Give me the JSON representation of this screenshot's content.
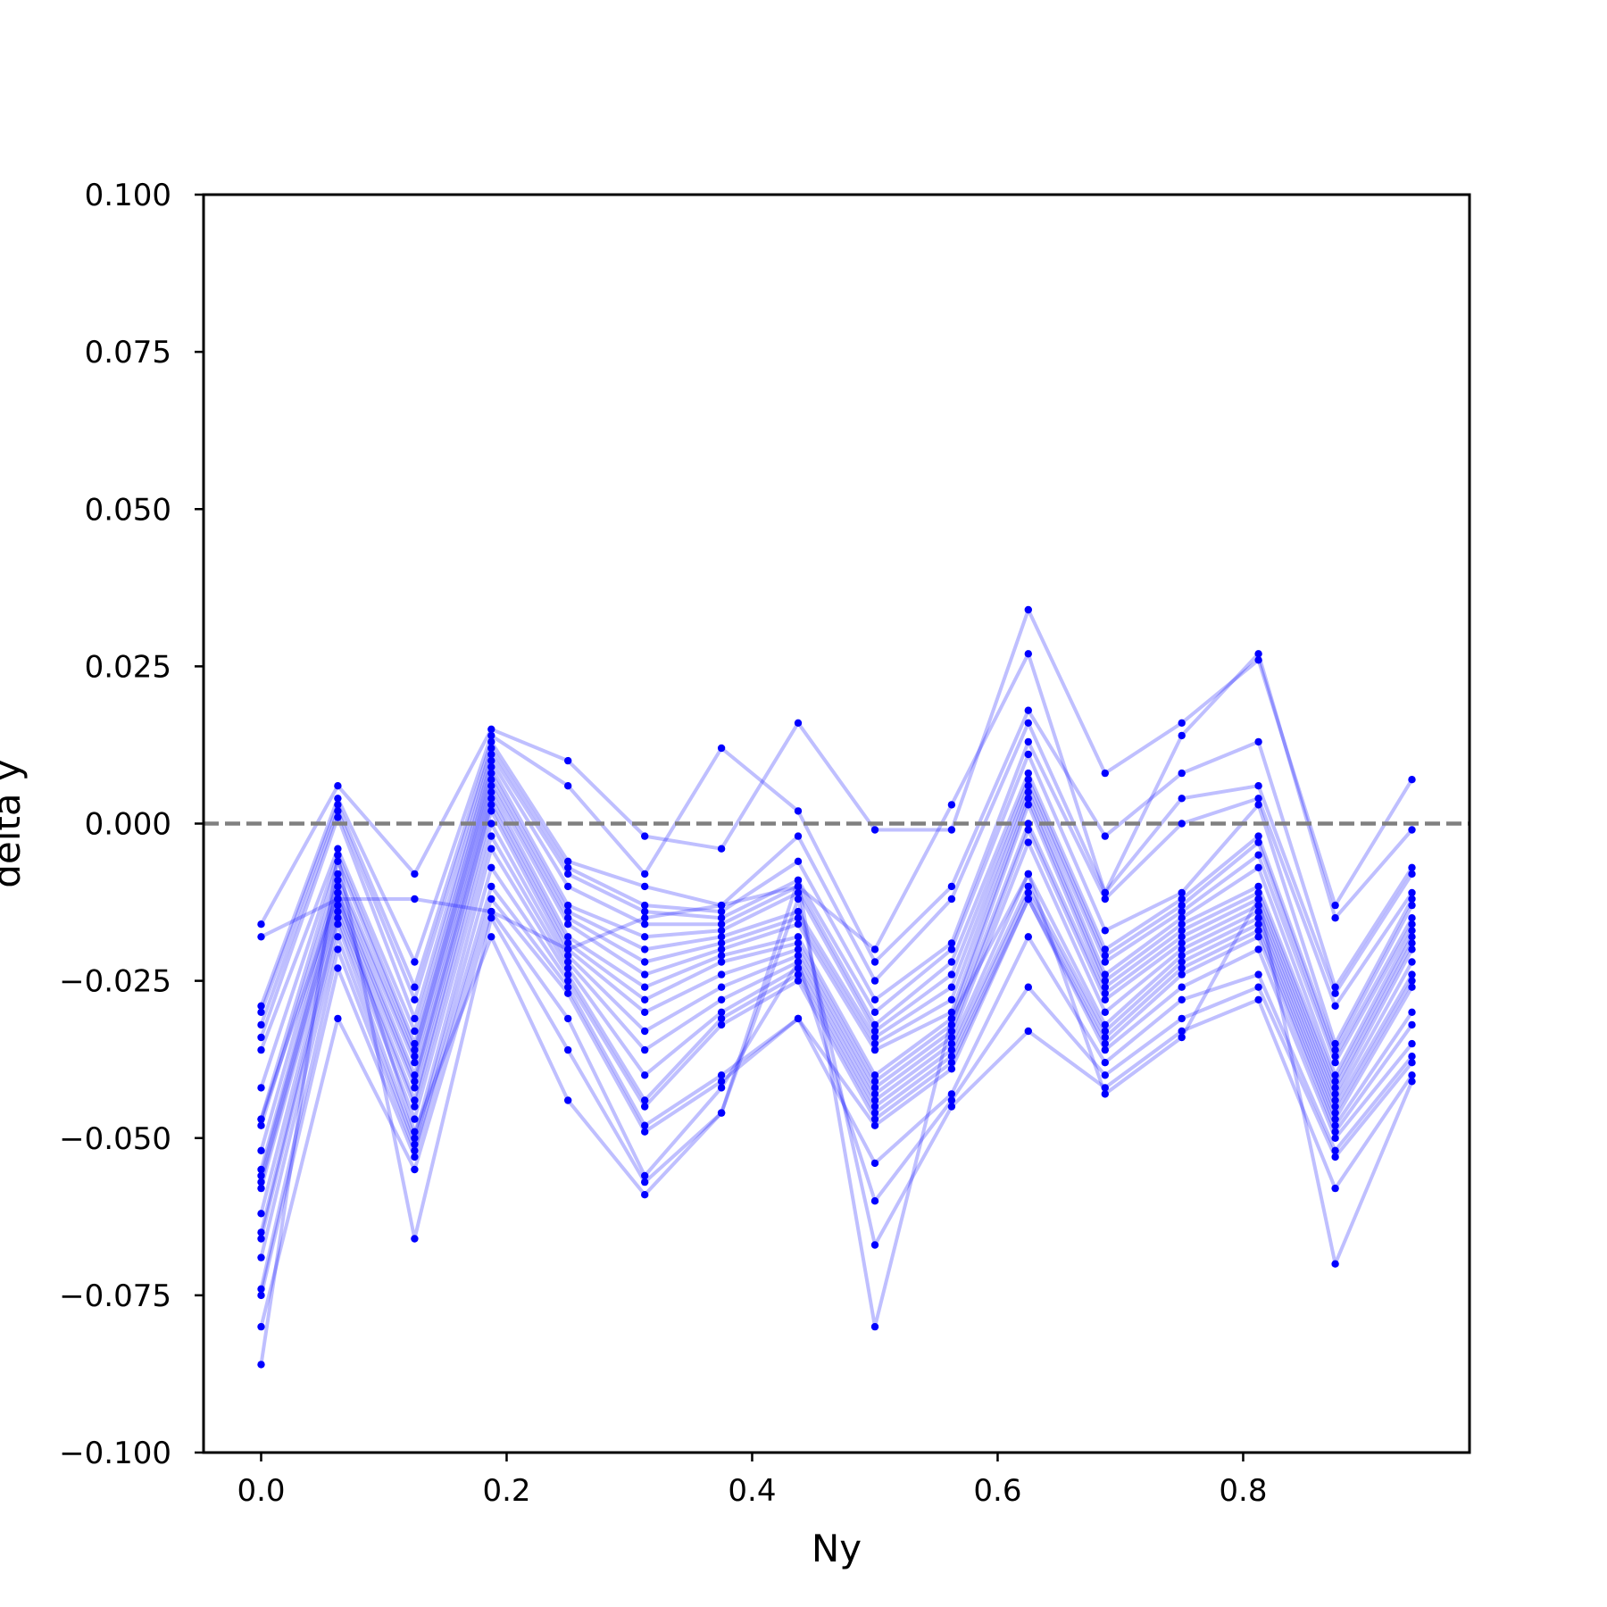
{
  "chart_data": {
    "type": "line",
    "title": "",
    "xlabel": "Ny",
    "ylabel": "delta y",
    "xlim": [
      -0.0469,
      0.9844
    ],
    "ylim": [
      -0.1,
      0.1
    ],
    "xticks": [
      0.0,
      0.2,
      0.4,
      0.6,
      0.8
    ],
    "xtick_labels": [
      "0.0",
      "0.2",
      "0.4",
      "0.6",
      "0.8"
    ],
    "yticks": [
      0.1,
      0.075,
      0.05,
      0.025,
      0.0,
      -0.025,
      -0.05,
      -0.075,
      -0.1
    ],
    "ytick_labels": [
      "0.100",
      "0.075",
      "0.050",
      "0.025",
      "0.000",
      "−0.025",
      "−0.050",
      "−0.075",
      "−0.100"
    ],
    "reference_line": {
      "y": 0.0,
      "style": "dashed",
      "color": "#808080"
    },
    "line_color": "#0000ff",
    "line_alpha": 0.25,
    "marker_color": "#0000ff",
    "grid": false,
    "x": [
      0.0,
      0.0625,
      0.125,
      0.1875,
      0.25,
      0.3125,
      0.375,
      0.4375,
      0.5,
      0.5625,
      0.625,
      0.6875,
      0.75,
      0.8125,
      0.875,
      0.9375
    ],
    "series": [
      {
        "values": [
          -0.016,
          0.006,
          -0.008,
          0.015,
          0.01,
          -0.002,
          -0.004,
          0.016,
          -0.001,
          -0.001,
          0.034,
          0.008,
          0.016,
          0.026,
          -0.013,
          0.007
        ]
      },
      {
        "values": [
          -0.018,
          -0.012,
          -0.012,
          -0.014,
          -0.02,
          -0.015,
          -0.013,
          -0.01,
          -0.02,
          0.003,
          0.027,
          -0.011,
          0.014,
          0.027,
          -0.015,
          -0.001
        ]
      },
      {
        "values": [
          -0.029,
          0.004,
          -0.022,
          0.014,
          0.006,
          -0.008,
          0.012,
          0.002,
          -0.022,
          -0.01,
          0.018,
          -0.002,
          0.008,
          0.013,
          -0.026,
          -0.007
        ]
      },
      {
        "values": [
          -0.03,
          0.003,
          -0.026,
          0.013,
          -0.006,
          -0.01,
          -0.013,
          -0.002,
          -0.025,
          -0.012,
          0.016,
          -0.011,
          0.004,
          0.006,
          -0.027,
          -0.008
        ]
      },
      {
        "values": [
          -0.032,
          0.002,
          -0.028,
          0.012,
          -0.007,
          -0.013,
          -0.014,
          -0.006,
          -0.028,
          -0.019,
          0.013,
          -0.012,
          0.0,
          0.004,
          -0.029,
          -0.011
        ]
      },
      {
        "values": [
          -0.034,
          0.001,
          -0.031,
          0.011,
          -0.008,
          -0.014,
          -0.015,
          -0.009,
          -0.03,
          -0.02,
          0.011,
          -0.017,
          -0.011,
          0.003,
          -0.035,
          -0.012
        ]
      },
      {
        "values": [
          -0.036,
          -0.004,
          -0.033,
          0.01,
          -0.01,
          -0.016,
          -0.016,
          -0.01,
          -0.032,
          -0.022,
          0.008,
          -0.02,
          -0.012,
          -0.002,
          -0.036,
          -0.013
        ]
      },
      {
        "values": [
          -0.042,
          -0.005,
          -0.035,
          0.009,
          -0.013,
          -0.018,
          -0.017,
          -0.011,
          -0.033,
          -0.024,
          0.007,
          -0.021,
          -0.013,
          -0.003,
          -0.037,
          -0.015
        ]
      },
      {
        "values": [
          -0.047,
          -0.006,
          -0.036,
          0.008,
          -0.014,
          -0.02,
          -0.018,
          -0.014,
          -0.034,
          -0.026,
          0.006,
          -0.022,
          -0.014,
          -0.005,
          -0.038,
          -0.016
        ]
      },
      {
        "values": [
          -0.048,
          -0.008,
          -0.037,
          0.007,
          -0.015,
          -0.022,
          -0.019,
          -0.015,
          -0.035,
          -0.028,
          0.005,
          -0.024,
          -0.015,
          -0.007,
          -0.04,
          -0.017
        ]
      },
      {
        "values": [
          -0.052,
          -0.009,
          -0.038,
          0.006,
          -0.016,
          -0.024,
          -0.02,
          -0.016,
          -0.036,
          -0.03,
          0.004,
          -0.025,
          -0.016,
          -0.01,
          -0.041,
          -0.018
        ]
      },
      {
        "values": [
          -0.055,
          -0.01,
          -0.04,
          0.005,
          -0.018,
          -0.026,
          -0.021,
          -0.018,
          -0.04,
          -0.031,
          0.003,
          -0.026,
          -0.017,
          -0.011,
          -0.042,
          -0.019
        ]
      },
      {
        "values": [
          -0.056,
          -0.011,
          -0.041,
          0.004,
          -0.019,
          -0.028,
          -0.022,
          -0.019,
          -0.041,
          -0.032,
          0.0,
          -0.027,
          -0.018,
          -0.012,
          -0.043,
          -0.02
        ]
      },
      {
        "values": [
          -0.057,
          -0.012,
          -0.042,
          0.003,
          -0.02,
          -0.03,
          -0.024,
          -0.02,
          -0.042,
          -0.033,
          -0.001,
          -0.028,
          -0.019,
          -0.013,
          -0.044,
          -0.022
        ]
      },
      {
        "values": [
          -0.058,
          -0.013,
          -0.044,
          0.002,
          -0.021,
          -0.033,
          -0.026,
          -0.021,
          -0.043,
          -0.034,
          -0.003,
          -0.03,
          -0.02,
          -0.014,
          -0.045,
          -0.024
        ]
      },
      {
        "values": [
          -0.062,
          -0.014,
          -0.045,
          0.0,
          -0.022,
          -0.036,
          -0.028,
          -0.022,
          -0.044,
          -0.035,
          -0.008,
          -0.032,
          -0.021,
          -0.015,
          -0.046,
          -0.025
        ]
      },
      {
        "values": [
          -0.065,
          -0.015,
          -0.047,
          -0.002,
          -0.023,
          -0.04,
          -0.03,
          -0.023,
          -0.045,
          -0.036,
          -0.01,
          -0.033,
          -0.022,
          -0.016,
          -0.047,
          -0.026
        ]
      },
      {
        "values": [
          -0.066,
          -0.016,
          -0.05,
          -0.004,
          -0.024,
          -0.044,
          -0.031,
          -0.024,
          -0.046,
          -0.037,
          -0.011,
          -0.034,
          -0.023,
          -0.017,
          -0.048,
          -0.03
        ]
      },
      {
        "values": [
          -0.069,
          -0.018,
          -0.051,
          -0.007,
          -0.025,
          -0.045,
          -0.032,
          -0.025,
          -0.047,
          -0.038,
          -0.012,
          -0.035,
          -0.024,
          -0.018,
          -0.049,
          -0.032
        ]
      },
      {
        "values": [
          -0.074,
          -0.02,
          -0.052,
          -0.01,
          -0.026,
          -0.048,
          -0.04,
          -0.031,
          -0.048,
          -0.039,
          -0.012,
          -0.036,
          -0.026,
          -0.02,
          -0.05,
          -0.035
        ]
      },
      {
        "values": [
          -0.075,
          -0.023,
          -0.053,
          -0.012,
          -0.027,
          -0.049,
          -0.041,
          -0.031,
          -0.054,
          -0.043,
          -0.018,
          -0.038,
          -0.028,
          -0.024,
          -0.052,
          -0.037
        ]
      },
      {
        "values": [
          -0.08,
          -0.031,
          -0.055,
          -0.014,
          -0.031,
          -0.056,
          -0.042,
          -0.022,
          -0.06,
          -0.044,
          -0.026,
          -0.04,
          -0.031,
          -0.026,
          -0.053,
          -0.038
        ]
      },
      {
        "values": [
          -0.086,
          -0.005,
          -0.066,
          -0.015,
          -0.036,
          -0.057,
          -0.046,
          -0.012,
          -0.067,
          -0.045,
          -0.033,
          -0.042,
          -0.033,
          -0.028,
          -0.058,
          -0.04
        ]
      },
      {
        "values": [
          -0.047,
          -0.011,
          -0.049,
          -0.018,
          -0.044,
          -0.059,
          -0.046,
          -0.009,
          -0.08,
          -0.031,
          -0.008,
          -0.043,
          -0.034,
          -0.012,
          -0.07,
          -0.041
        ]
      }
    ]
  }
}
